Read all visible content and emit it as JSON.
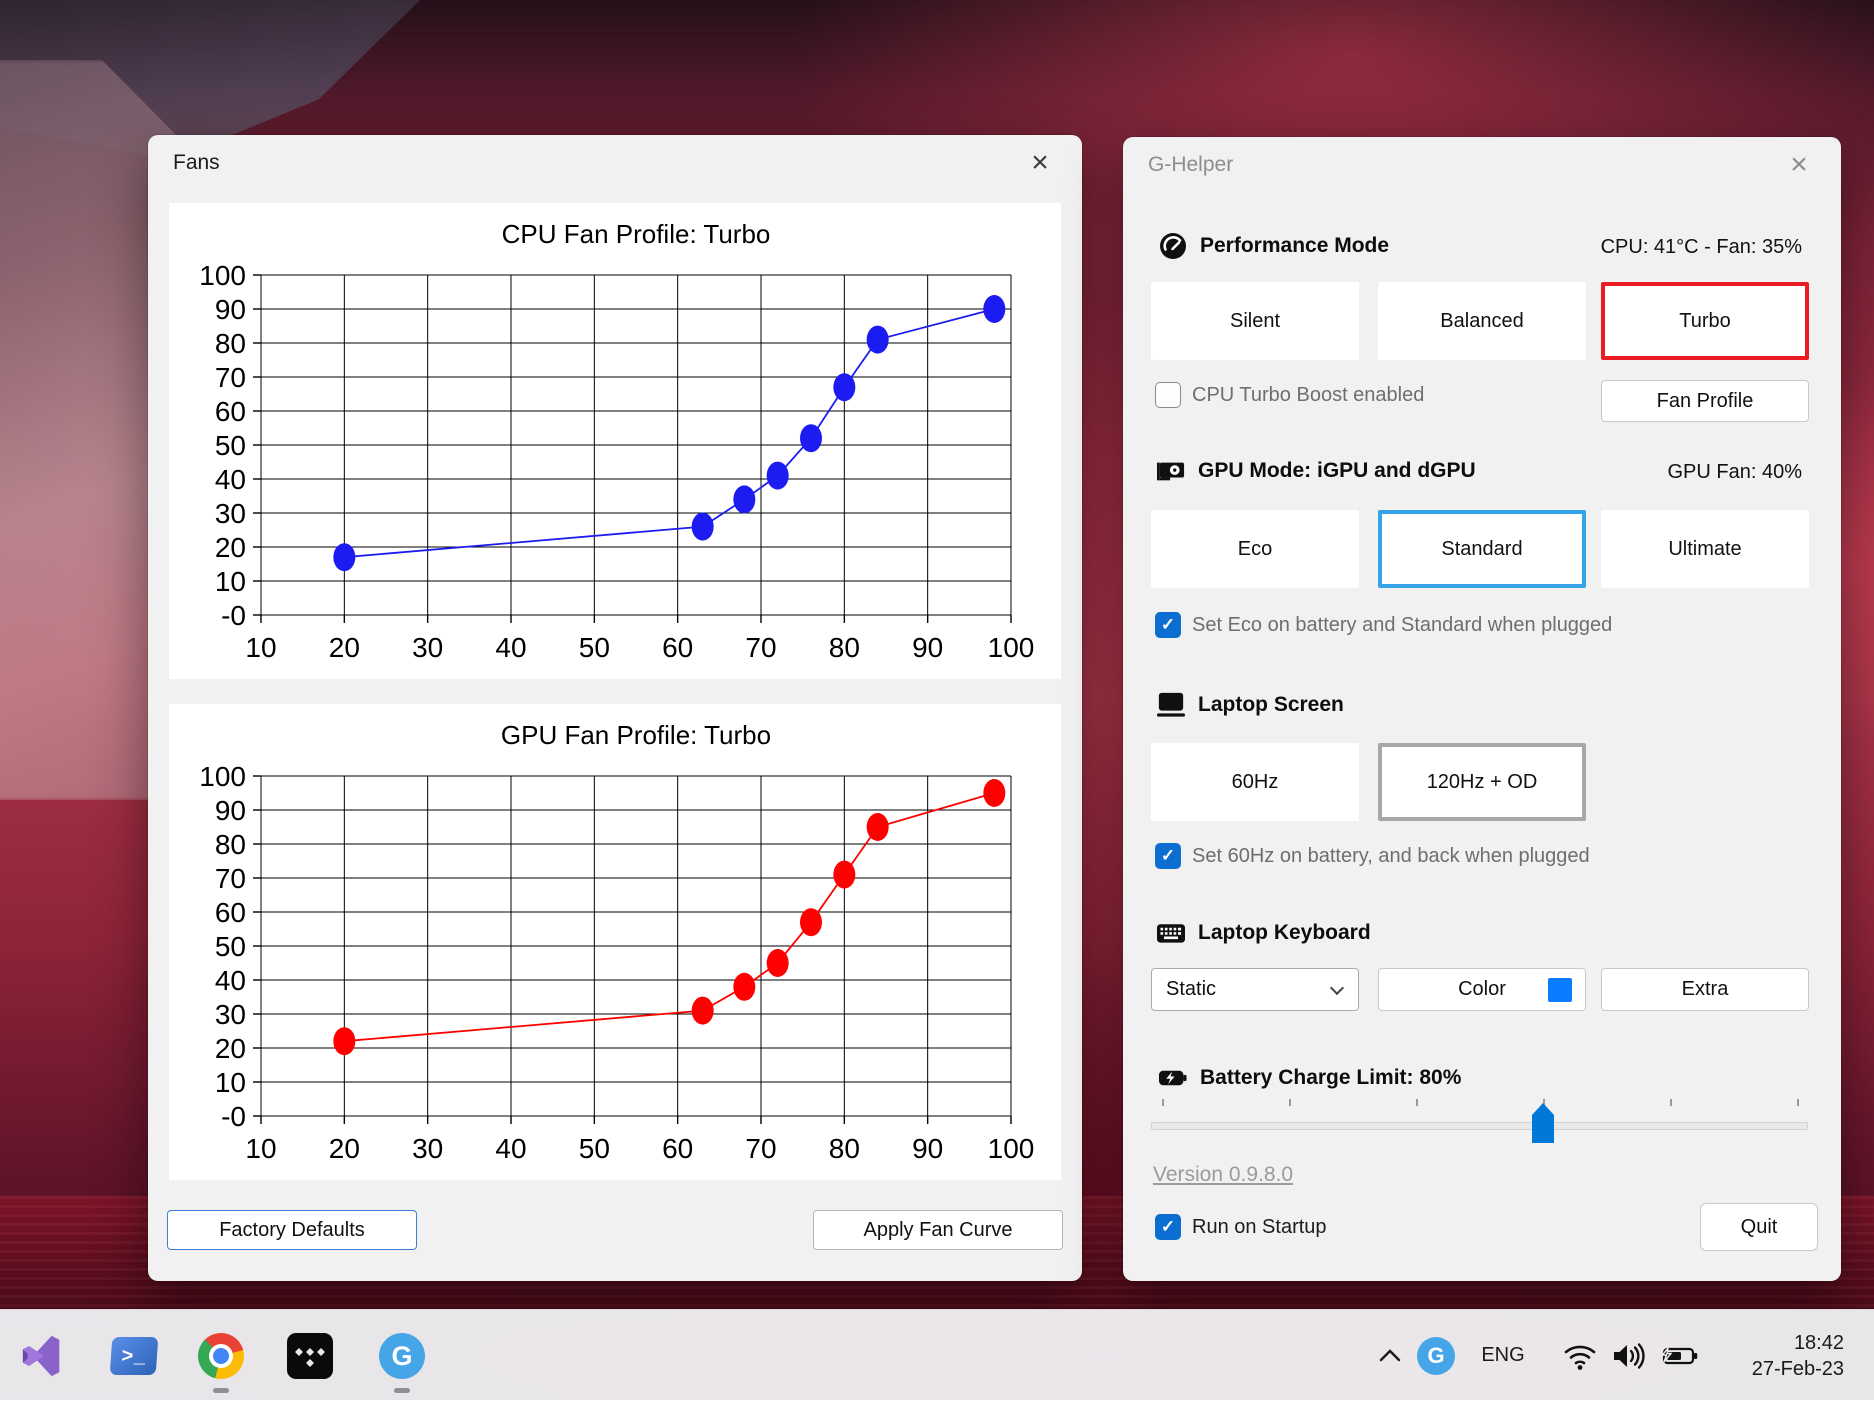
{
  "chart_data": [
    {
      "type": "line",
      "title": "CPU Fan Profile: Turbo",
      "series_name": "CPU fan curve",
      "x": [
        20,
        63,
        68,
        72,
        76,
        80,
        84,
        98
      ],
      "y": [
        17,
        26,
        34,
        41,
        52,
        67,
        81,
        90
      ],
      "xlabel": "",
      "ylabel": "",
      "xlim": [
        10,
        100
      ],
      "ylim": [
        0,
        100
      ],
      "xticks": [
        "10",
        "20",
        "30",
        "40",
        "50",
        "60",
        "70",
        "80",
        "90",
        "100"
      ],
      "yticks": [
        "100",
        "90",
        "80",
        "70",
        "60",
        "50",
        "40",
        "30",
        "20",
        "10",
        "-0"
      ],
      "grid": true,
      "color": "#1c1cf2"
    },
    {
      "type": "line",
      "title": "GPU Fan Profile: Turbo",
      "series_name": "GPU fan curve",
      "x": [
        20,
        63,
        68,
        72,
        76,
        80,
        84,
        98
      ],
      "y": [
        22,
        31,
        38,
        45,
        57,
        71,
        85,
        95
      ],
      "xlabel": "",
      "ylabel": "",
      "xlim": [
        10,
        100
      ],
      "ylim": [
        0,
        100
      ],
      "xticks": [
        "10",
        "20",
        "30",
        "40",
        "50",
        "60",
        "70",
        "80",
        "90",
        "100"
      ],
      "yticks": [
        "100",
        "90",
        "80",
        "70",
        "60",
        "50",
        "40",
        "30",
        "20",
        "10",
        "-0"
      ],
      "grid": true,
      "color": "#ff0000"
    }
  ],
  "fans_window": {
    "title": "Fans",
    "factory_defaults_label": "Factory Defaults",
    "apply_fan_curve_label": "Apply Fan Curve"
  },
  "ghelper_window": {
    "title": "G-Helper",
    "performance": {
      "label": "Performance Mode",
      "status": "CPU: 41°C -  Fan: 35%",
      "modes": [
        "Silent",
        "Balanced",
        "Turbo"
      ],
      "selected": "Turbo",
      "turbo_boost_label": "CPU Turbo Boost enabled",
      "turbo_boost_checked": false,
      "fan_profile_label": "Fan Profile"
    },
    "gpu": {
      "label": "GPU Mode: iGPU and dGPU",
      "status": "GPU Fan: 40%",
      "modes": [
        "Eco",
        "Standard",
        "Ultimate"
      ],
      "selected": "Standard",
      "checkbox_label": "Set Eco on battery and Standard when plugged",
      "checkbox_checked": true
    },
    "screen": {
      "label": "Laptop Screen",
      "modes": [
        "60Hz",
        "120Hz + OD"
      ],
      "selected": "120Hz + OD",
      "checkbox_label": "Set 60Hz on battery, and back when plugged",
      "checkbox_checked": true
    },
    "keyboard": {
      "label": "Laptop Keyboard",
      "dropdown_value": "Static",
      "color_label": "Color",
      "extra_label": "Extra",
      "swatch_color": "#0a7dff"
    },
    "battery": {
      "label": "Battery Charge Limit: 80%",
      "value": 80,
      "min": 50,
      "max": 100,
      "percent_pos": 60
    },
    "version_label": "Version 0.9.8.0",
    "startup_label": "Run on Startup",
    "startup_checked": true,
    "quit_label": "Quit"
  },
  "taskbar": {
    "apps": [
      "visual-studio",
      "powershell",
      "chrome",
      "tidal",
      "g-helper"
    ],
    "running_apps": [
      "chrome",
      "g-helper"
    ],
    "tray": {
      "language": "ENG",
      "time": "18:42",
      "date": "27-Feb-23"
    }
  },
  "icons": {
    "close": "×",
    "check": "✓",
    "g_letter": "G",
    "powershell_prompt": ">_"
  },
  "colors": {
    "accent_checkbox": "#0b6ed0",
    "turbo_selected_border": "#ea1b23",
    "standard_selected_border": "#35a3e8",
    "screen_selected_border": "#a8a8a8",
    "slider_thumb": "#0078d7",
    "cpu_curve": "#1c1cf2",
    "gpu_curve": "#ff0000",
    "ghelper_brand": "#45a5e6"
  }
}
